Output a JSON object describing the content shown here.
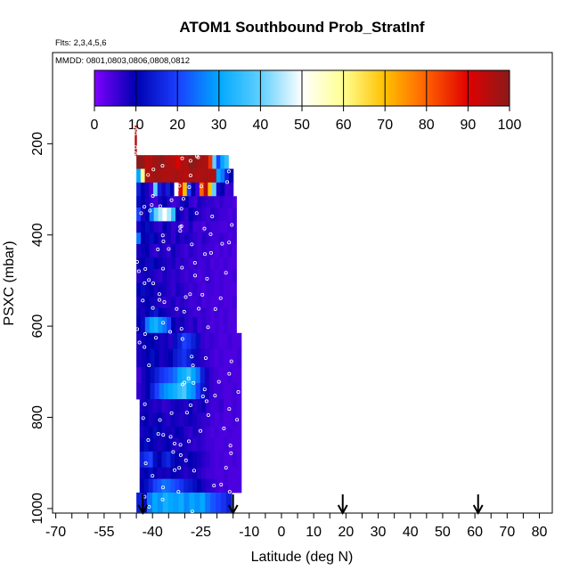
{
  "chart_data": {
    "type": "heatmap",
    "title": "ATOM1 Southbound Prob_StratInf",
    "flights_label": "Flts: 2,3,4,5,6",
    "dates_label": "MMDD: 0801,0803,0806,0808,0812",
    "xlabel": "Latitude (deg N)",
    "ylabel": "PSXC (mbar)",
    "xlim": [
      -71,
      84
    ],
    "ylim": [
      1010,
      0
    ],
    "x_ticks": [
      -70,
      -55,
      -40,
      -25,
      -10,
      0,
      10,
      20,
      30,
      40,
      50,
      60,
      70,
      80
    ],
    "x_tick_labels": [
      "-70",
      "-55",
      "-40",
      "-25",
      "-10",
      "0",
      "10",
      "20",
      "30",
      "40",
      "50",
      "60",
      "70",
      "80"
    ],
    "y_ticks": [
      200,
      400,
      600,
      800,
      1000
    ],
    "y_tick_labels": [
      "200",
      "400",
      "600",
      "800",
      "1000"
    ],
    "colorbar": {
      "min": 0,
      "max": 100,
      "tick_values": [
        0,
        10,
        20,
        30,
        40,
        50,
        60,
        70,
        80,
        90,
        100
      ],
      "tick_labels": [
        "0",
        "10",
        "20",
        "30",
        "40",
        "50",
        "60",
        "70",
        "80",
        "90",
        "100"
      ],
      "colors": [
        "#7f00ff",
        "#3a00d8",
        "#0000b0",
        "#0010e0",
        "#2060ff",
        "#10a0ff",
        "#00c0ff",
        "#a0e0ff",
        "#ffffff",
        "#ffffa0",
        "#ffe040",
        "#ffb000",
        "#ff7000",
        "#ff0000",
        "#c00000",
        "#8b1010"
      ]
    },
    "flight_markers_lat": [
      -43,
      -15,
      19,
      61
    ],
    "layers": [
      {
        "p_top": 160,
        "p_bot": 190,
        "lat_start": -45.5,
        "lat_end": -45,
        "values": [
          95
        ]
      },
      {
        "p_top": 190,
        "p_bot": 225,
        "lat_start": -45.5,
        "lat_end": -45,
        "values": [
          95
        ]
      },
      {
        "p_top": 225,
        "p_bot": 255,
        "lat_start": -45,
        "lat_end": -16.5,
        "values": [
          100,
          100,
          95,
          95,
          98,
          98,
          100,
          96,
          96,
          95,
          90,
          96,
          96,
          100,
          100,
          97,
          97,
          96,
          85,
          40,
          20,
          30,
          35
        ]
      },
      {
        "p_top": 255,
        "p_bot": 285,
        "lat_start": -45,
        "lat_end": -15,
        "values": [
          30,
          60,
          96,
          96,
          98,
          97,
          96,
          96,
          96,
          97,
          96,
          95,
          96,
          97,
          96,
          96,
          97,
          96,
          96,
          30,
          25,
          15,
          10
        ]
      },
      {
        "p_top": 285,
        "p_bot": 315,
        "lat_start": -45,
        "lat_end": -15,
        "values": [
          15,
          10,
          8,
          5,
          40,
          15,
          8,
          15,
          10,
          50,
          90,
          70,
          20,
          10,
          5,
          80,
          95,
          70,
          40,
          8,
          10,
          5,
          6
        ]
      },
      {
        "p_top": 315,
        "p_bot": 340,
        "lat_start": -45,
        "lat_end": -14,
        "values": [
          12,
          10,
          8,
          6,
          5,
          8,
          10,
          7,
          5,
          6,
          8,
          10,
          6,
          5,
          8,
          7,
          6,
          6,
          5,
          6,
          5,
          5,
          4
        ]
      },
      {
        "p_top": 340,
        "p_bot": 370,
        "lat_start": -45,
        "lat_end": -14,
        "values": [
          20,
          8,
          10,
          25,
          40,
          45,
          50,
          45,
          35,
          10,
          8,
          6,
          10,
          8,
          7,
          6,
          5,
          7,
          6,
          5,
          5,
          4,
          5
        ]
      },
      {
        "p_top": 370,
        "p_bot": 395,
        "lat_start": -45,
        "lat_end": -14,
        "values": [
          8,
          10,
          12,
          9,
          7,
          6,
          10,
          8,
          6,
          7,
          5,
          6,
          8,
          5,
          5,
          4,
          6,
          5,
          5,
          4,
          4,
          5,
          5
        ]
      },
      {
        "p_top": 395,
        "p_bot": 420,
        "lat_start": -45,
        "lat_end": -14,
        "values": [
          25,
          10,
          9,
          12,
          10,
          8,
          7,
          8,
          6,
          9,
          7,
          8,
          7,
          6,
          5,
          7,
          6,
          5,
          5,
          6,
          5,
          4,
          5
        ]
      },
      {
        "p_top": 420,
        "p_bot": 450,
        "lat_start": -45,
        "lat_end": -14,
        "values": [
          8,
          9,
          10,
          7,
          6,
          8,
          7,
          6,
          9,
          7,
          6,
          5,
          7,
          6,
          5,
          6,
          5,
          5,
          4,
          5,
          4,
          5,
          4
        ]
      },
      {
        "p_top": 450,
        "p_bot": 475,
        "lat_start": -45,
        "lat_end": -14,
        "values": [
          9,
          10,
          8,
          12,
          10,
          9,
          8,
          7,
          8,
          6,
          7,
          6,
          5,
          6,
          5,
          5,
          6,
          4,
          5,
          4,
          5,
          4,
          4
        ]
      },
      {
        "p_top": 475,
        "p_bot": 505,
        "lat_start": -45,
        "lat_end": -14,
        "values": [
          7,
          8,
          9,
          8,
          7,
          6,
          8,
          7,
          6,
          7,
          6,
          5,
          6,
          5,
          4,
          5,
          6,
          5,
          4,
          5,
          4,
          4,
          5
        ]
      },
      {
        "p_top": 505,
        "p_bot": 535,
        "lat_start": -45,
        "lat_end": -14,
        "values": [
          10,
          12,
          9,
          10,
          8,
          9,
          8,
          7,
          6,
          8,
          7,
          6,
          5,
          6,
          5,
          4,
          5,
          5,
          4,
          5,
          4,
          4,
          4
        ]
      },
      {
        "p_top": 535,
        "p_bot": 560,
        "lat_start": -45,
        "lat_end": -14,
        "values": [
          8,
          9,
          10,
          9,
          8,
          7,
          6,
          7,
          8,
          6,
          7,
          6,
          5,
          5,
          6,
          4,
          5,
          4,
          4,
          5,
          4,
          4,
          5
        ]
      },
      {
        "p_top": 560,
        "p_bot": 580,
        "lat_start": -45,
        "lat_end": -14,
        "values": [
          9,
          8,
          10,
          12,
          14,
          10,
          9,
          8,
          7,
          6,
          8,
          7,
          6,
          5,
          5,
          6,
          5,
          4,
          5,
          4,
          5,
          4,
          4
        ]
      },
      {
        "p_top": 580,
        "p_bot": 615,
        "lat_start": -45,
        "lat_end": -14,
        "values": [
          10,
          12,
          25,
          30,
          32,
          28,
          25,
          20,
          10,
          8,
          9,
          7,
          6,
          8,
          5,
          6,
          5,
          4,
          5,
          4,
          5,
          4,
          4
        ]
      },
      {
        "p_top": 615,
        "p_bot": 650,
        "lat_start": -45,
        "lat_end": -12.5,
        "values": [
          8,
          9,
          10,
          10,
          9,
          8,
          9,
          7,
          12,
          15,
          20,
          18,
          15,
          12,
          6,
          5,
          6,
          5,
          4,
          4,
          5,
          4,
          4
        ]
      },
      {
        "p_top": 650,
        "p_bot": 690,
        "lat_start": -45,
        "lat_end": -12.5,
        "values": [
          8,
          9,
          10,
          12,
          10,
          8,
          9,
          10,
          14,
          16,
          18,
          15,
          12,
          8,
          7,
          6,
          5,
          4,
          5,
          4,
          4,
          4,
          5
        ]
      },
      {
        "p_top": 690,
        "p_bot": 725,
        "lat_start": -45,
        "lat_end": -12.5,
        "values": [
          5,
          8,
          10,
          12,
          15,
          18,
          20,
          22,
          25,
          30,
          32,
          35,
          30,
          25,
          15,
          8,
          6,
          5,
          4,
          4,
          5,
          4,
          4
        ]
      },
      {
        "p_top": 725,
        "p_bot": 760,
        "lat_start": -45,
        "lat_end": -12.5,
        "values": [
          6,
          8,
          10,
          15,
          20,
          25,
          28,
          30,
          32,
          35,
          38,
          30,
          28,
          20,
          14,
          8,
          6,
          5,
          5,
          4,
          4,
          5,
          4
        ]
      },
      {
        "p_top": 760,
        "p_bot": 790,
        "lat_start": -44,
        "lat_end": -12.5,
        "values": [
          8,
          9,
          8,
          7,
          8,
          6,
          7,
          8,
          9,
          8,
          7,
          10,
          7,
          8,
          9,
          6,
          5,
          5,
          6,
          4,
          4,
          5,
          4
        ]
      },
      {
        "p_top": 790,
        "p_bot": 820,
        "lat_start": -44,
        "lat_end": -12.5,
        "values": [
          9,
          10,
          8,
          9,
          10,
          8,
          7,
          9,
          8,
          7,
          8,
          9,
          8,
          7,
          6,
          6,
          5,
          4,
          5,
          4,
          4,
          5,
          4
        ]
      },
      {
        "p_top": 820,
        "p_bot": 845,
        "lat_start": -44,
        "lat_end": -12.5,
        "values": [
          8,
          9,
          10,
          12,
          10,
          8,
          9,
          8,
          10,
          9,
          7,
          6,
          8,
          7,
          6,
          5,
          4,
          5,
          4,
          4,
          5,
          4,
          4
        ]
      },
      {
        "p_top": 845,
        "p_bot": 875,
        "lat_start": -44,
        "lat_end": -12.5,
        "values": [
          10,
          12,
          10,
          9,
          8,
          9,
          10,
          8,
          7,
          9,
          8,
          7,
          6,
          7,
          6,
          5,
          5,
          4,
          4,
          5,
          4,
          4,
          4
        ]
      },
      {
        "p_top": 875,
        "p_bot": 910,
        "lat_start": -44,
        "lat_end": -12.5,
        "values": [
          15,
          18,
          20,
          12,
          10,
          14,
          16,
          12,
          10,
          9,
          8,
          10,
          9,
          8,
          7,
          6,
          5,
          4,
          5,
          4,
          4,
          5,
          4
        ]
      },
      {
        "p_top": 910,
        "p_bot": 935,
        "lat_start": -44,
        "lat_end": -12.5,
        "values": [
          9,
          10,
          12,
          10,
          8,
          9,
          8,
          10,
          9,
          8,
          7,
          8,
          9,
          7,
          6,
          5,
          5,
          4,
          4,
          5,
          4,
          4,
          4
        ]
      },
      {
        "p_top": 935,
        "p_bot": 965,
        "lat_start": -44,
        "lat_end": -12.5,
        "values": [
          10,
          12,
          15,
          20,
          22,
          25,
          24,
          22,
          20,
          18,
          15,
          14,
          12,
          10,
          8,
          7,
          6,
          5,
          4,
          5,
          4,
          4,
          4
        ]
      },
      {
        "p_top": 965,
        "p_bot": 1008,
        "lat_start": -45,
        "lat_end": -15.5,
        "values": [
          15,
          12,
          25,
          30,
          28,
          32,
          30,
          29,
          31,
          27,
          30,
          28,
          30,
          25,
          22,
          20,
          18,
          15
        ]
      }
    ]
  }
}
